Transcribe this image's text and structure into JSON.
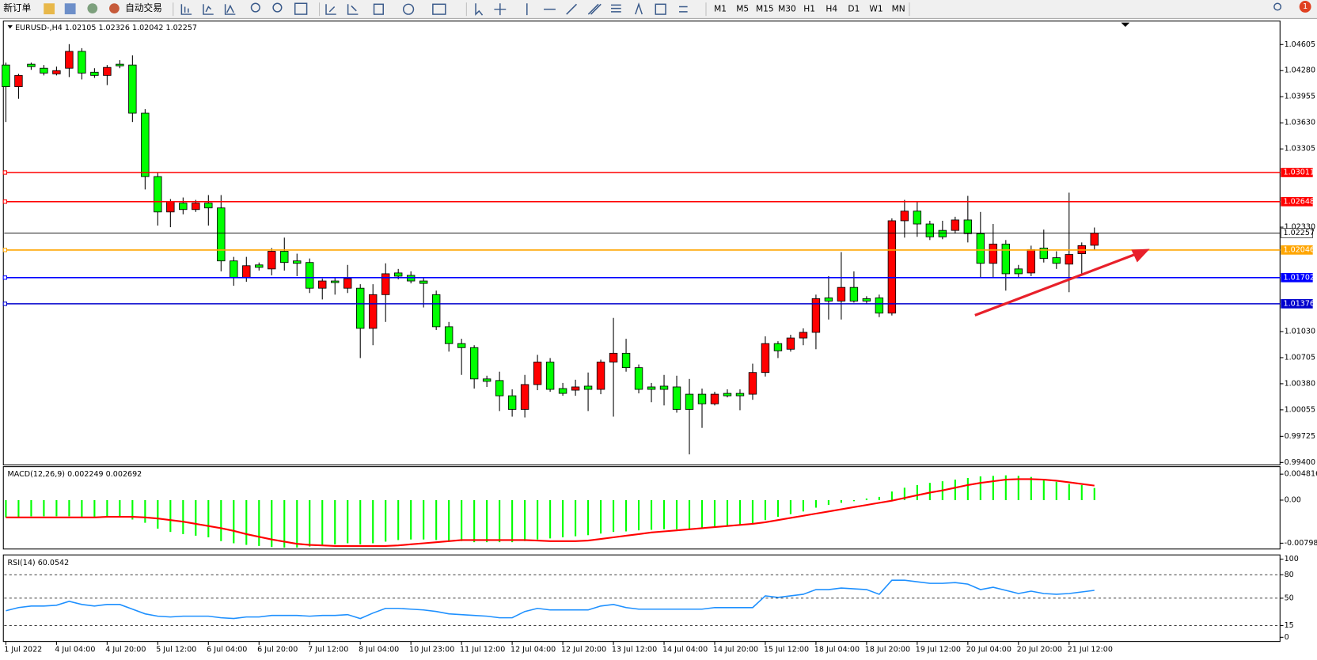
{
  "toolbar": {
    "new_order": "新订单",
    "auto_trade": "自动交易",
    "timeframes": [
      "M1",
      "M5",
      "M15",
      "M30",
      "H1",
      "H4",
      "D1",
      "W1",
      "MN"
    ],
    "badge": "1"
  },
  "chart_data": [
    {
      "type": "candlestick",
      "symbol": "EURUSD-,H4",
      "up_color": "#ff0000",
      "down_color": "#00ff00",
      "categories": [
        "1 Jul 2022",
        null,
        null,
        null,
        "4 Jul 04:00",
        null,
        null,
        null,
        "4 Jul 20:00",
        null,
        null,
        null,
        "5 Jul 12:00",
        null,
        null,
        null,
        "6 Jul 04:00",
        null,
        null,
        null,
        "6 Jul 20:00",
        null,
        null,
        null,
        "7 Jul 12:00",
        null,
        null,
        null,
        "8 Jul 04:00",
        null,
        null,
        null,
        "10 Jul 23:00",
        null,
        null,
        null,
        "11 Jul 12:00",
        null,
        null,
        null,
        "12 Jul 04:00",
        null,
        null,
        null,
        "12 Jul 20:00",
        null,
        null,
        null,
        "13 Jul 12:00",
        null,
        null,
        null,
        "14 Jul 04:00",
        null,
        null,
        null,
        "14 Jul 20:00",
        null,
        null,
        null,
        "15 Jul 12:00",
        null,
        null,
        null,
        "18 Jul 04:00",
        null,
        null,
        null,
        "18 Jul 20:00",
        null,
        null,
        null,
        "19 Jul 12:00",
        null,
        null,
        null,
        "20 Jul 04:00",
        null,
        null,
        null,
        "20 Jul 20:00",
        null,
        null,
        null,
        "21 Jul 12:00",
        null,
        null
      ],
      "open": [
        1.0435,
        1.0408,
        1.0436,
        1.0431,
        1.0424,
        1.0431,
        1.0452,
        1.0426,
        1.0422,
        1.0436,
        1.0435,
        1.0375,
        1.0296,
        1.0252,
        1.0263,
        1.0255,
        1.0263,
        1.0257,
        1.0191,
        1.017,
        1.0186,
        1.0181,
        1.0203,
        1.0191,
        1.0189,
        1.0157,
        1.0166,
        1.0157,
        1.0157,
        1.0107,
        1.0149,
        1.0176,
        1.0173,
        1.0166,
        1.0149,
        1.0109,
        1.0088,
        1.0083,
        1.0044,
        1.0042,
        1.0023,
        1.0006,
        1.0037,
        1.0065,
        1.0032,
        1.003,
        1.0035,
        1.0031,
        1.0065,
        1.0076,
        1.0058,
        1.0034,
        1.0035,
        1.0034,
        1.0025,
        1.0025,
        1.0013,
        1.0026,
        1.0026,
        1.0025,
        1.0052,
        1.0088,
        1.0081,
        1.0095,
        1.0102,
        1.0145,
        1.0141,
        1.0158,
        1.0144,
        1.0145,
        1.0126,
        1.0241,
        1.0253,
        1.0237,
        1.0229,
        1.0229,
        1.0242,
        1.0225,
        1.0188,
        1.0212,
        1.0181,
        1.0176,
        1.0207,
        1.0195,
        1.0187,
        1.02,
        1.02105
      ],
      "high": [
        1.0438,
        1.0424,
        1.0438,
        1.0435,
        1.0433,
        1.0461,
        1.0456,
        1.0431,
        1.0435,
        1.0441,
        1.0447,
        1.038,
        1.0301,
        1.0268,
        1.027,
        1.0267,
        1.0273,
        1.0273,
        1.0196,
        1.0196,
        1.0189,
        1.0207,
        1.022,
        1.02,
        1.0194,
        1.0169,
        1.017,
        1.0186,
        1.0162,
        1.0162,
        1.0188,
        1.0181,
        1.0178,
        1.017,
        1.0154,
        1.0115,
        1.0094,
        1.0086,
        1.0048,
        1.0053,
        1.0031,
        1.0049,
        1.0074,
        1.007,
        1.0039,
        1.0043,
        1.0052,
        1.0068,
        1.012,
        1.0094,
        1.0062,
        1.0039,
        1.0049,
        1.0048,
        1.0044,
        1.0032,
        1.0028,
        1.0031,
        1.0031,
        1.0063,
        1.0097,
        1.0091,
        1.0099,
        1.0107,
        1.0149,
        1.0172,
        1.0202,
        1.0178,
        1.0147,
        1.0149,
        1.0244,
        1.0267,
        1.0265,
        1.0241,
        1.0241,
        1.0246,
        1.0272,
        1.0252,
        1.0237,
        1.0217,
        1.0186,
        1.021,
        1.023,
        1.0203,
        1.0276,
        1.0214,
        1.02326
      ],
      "low": [
        1.0364,
        1.0393,
        1.0429,
        1.0422,
        1.0422,
        1.042,
        1.0417,
        1.0419,
        1.041,
        1.0431,
        1.0364,
        1.028,
        1.0235,
        1.0233,
        1.0249,
        1.0252,
        1.0235,
        1.0178,
        1.016,
        1.0165,
        1.0179,
        1.0173,
        1.0179,
        1.0172,
        1.0151,
        1.0143,
        1.0149,
        1.0151,
        1.007,
        1.0086,
        1.0115,
        1.0168,
        1.0163,
        1.0133,
        1.0105,
        1.0078,
        1.0049,
        1.0032,
        1.0034,
        1.0004,
        0.9997,
        0.9996,
        1.003,
        1.0028,
        1.0023,
        1.0023,
        1.0004,
        1.0025,
        0.9997,
        1.0053,
        1.0026,
        1.0015,
        1.0011,
        1.0002,
        0.995,
        0.9983,
        1.0011,
        1.0021,
        1.0005,
        1.0018,
        1.0047,
        1.007,
        1.0078,
        1.0086,
        1.0081,
        1.0118,
        1.0118,
        1.0139,
        1.0137,
        1.0121,
        1.0123,
        1.022,
        1.0221,
        1.0217,
        1.0218,
        1.0225,
        1.0214,
        1.017,
        1.017,
        1.0154,
        1.017,
        1.0172,
        1.0189,
        1.0181,
        1.0152,
        1.0174,
        1.02042
      ],
      "close": [
        1.0408,
        1.0422,
        1.0433,
        1.0425,
        1.0428,
        1.0452,
        1.0425,
        1.0422,
        1.0432,
        1.0434,
        1.0375,
        1.0296,
        1.0252,
        1.0265,
        1.0255,
        1.0263,
        1.0257,
        1.0191,
        1.017,
        1.0185,
        1.0183,
        1.0203,
        1.0189,
        1.0188,
        1.0157,
        1.0166,
        1.0164,
        1.0169,
        1.0107,
        1.0149,
        1.0175,
        1.0172,
        1.0166,
        1.0163,
        1.0109,
        1.0088,
        1.0083,
        1.0044,
        1.0041,
        1.0023,
        1.0006,
        1.0037,
        1.0065,
        1.0031,
        1.0026,
        1.0034,
        1.0031,
        1.0065,
        1.0076,
        1.0058,
        1.0031,
        1.0031,
        1.0031,
        1.0006,
        1.0006,
        1.0013,
        1.0025,
        1.0023,
        1.0023,
        1.0052,
        1.0088,
        1.0079,
        1.0095,
        1.0102,
        1.0144,
        1.0141,
        1.0158,
        1.0141,
        1.0141,
        1.0126,
        1.0241,
        1.0253,
        1.0237,
        1.0221,
        1.0221,
        1.0242,
        1.0225,
        1.0188,
        1.0212,
        1.0175,
        1.0175,
        1.0205,
        1.0194,
        1.0188,
        1.0199,
        1.021,
        1.02257
      ],
      "ylim": [
        0.994,
        1.04877
      ],
      "yticks": [
        {
          "value": 1.04605,
          "label": "1.04605"
        },
        {
          "value": 1.0428,
          "label": "1.04280"
        },
        {
          "value": 1.03955,
          "label": "1.03955"
        },
        {
          "value": 1.0363,
          "label": "1.03630"
        },
        {
          "value": 1.03305,
          "label": "1.03305"
        },
        {
          "value": 1.0233,
          "label": "1.02330"
        },
        {
          "value": 1.0103,
          "label": "1.01030"
        },
        {
          "value": 1.00705,
          "label": "1.00705"
        },
        {
          "value": 1.0038,
          "label": "1.00380"
        },
        {
          "value": 1.00055,
          "label": "1.00055"
        },
        {
          "value": 0.99725,
          "label": "0.99725"
        },
        {
          "value": 0.994,
          "label": "0.99400"
        }
      ],
      "levels": [
        {
          "value": 1.03011,
          "color": "#ff0000"
        },
        {
          "value": 1.02648,
          "color": "#ff0000"
        },
        {
          "value": 1.02046,
          "color": "#ffa500"
        },
        {
          "value": 1.01702,
          "color": "#0000ff"
        },
        {
          "value": 1.01376,
          "color": "#0000cd"
        }
      ]
    },
    {
      "type": "macd",
      "title": "MACD(12,26,9)",
      "histogram_color": "#00ff00",
      "signal_color": "#ff0000",
      "histogram": [
        -0.0032,
        -0.0031,
        -0.003,
        -0.003,
        -0.003,
        -0.003,
        -0.0031,
        -0.0031,
        -0.0031,
        -0.0032,
        -0.0036,
        -0.0042,
        -0.0053,
        -0.0059,
        -0.0063,
        -0.0066,
        -0.0069,
        -0.0076,
        -0.008,
        -0.0083,
        -0.0085,
        -0.0087,
        -0.0088,
        -0.0088,
        -0.0086,
        -0.0084,
        -0.0082,
        -0.008,
        -0.0082,
        -0.008,
        -0.0077,
        -0.0074,
        -0.0073,
        -0.0073,
        -0.0074,
        -0.0076,
        -0.0076,
        -0.0078,
        -0.0078,
        -0.0078,
        -0.0078,
        -0.0076,
        -0.0073,
        -0.0071,
        -0.0069,
        -0.0067,
        -0.0065,
        -0.0062,
        -0.0059,
        -0.0058,
        -0.0056,
        -0.0055,
        -0.0054,
        -0.0054,
        -0.0054,
        -0.0053,
        -0.0051,
        -0.0049,
        -0.0047,
        -0.0043,
        -0.0037,
        -0.0031,
        -0.0026,
        -0.0021,
        -0.0014,
        -0.0009,
        -0.0005,
        -0.0002,
        0.0003,
        0.0006,
        0.0016,
        0.0023,
        0.0028,
        0.0032,
        0.0035,
        0.0038,
        0.0041,
        0.0044,
        0.0045,
        0.0046,
        0.0045,
        0.0043,
        0.0038,
        0.0034,
        0.003,
        0.0028,
        0.002249
      ],
      "signal": [
        -0.0032,
        -0.0032,
        -0.0032,
        -0.0032,
        -0.0032,
        -0.0032,
        -0.0032,
        -0.0032,
        -0.0031,
        -0.0031,
        -0.0031,
        -0.0032,
        -0.0034,
        -0.0037,
        -0.004,
        -0.0044,
        -0.0048,
        -0.0052,
        -0.0057,
        -0.0063,
        -0.0068,
        -0.0073,
        -0.0077,
        -0.0081,
        -0.0083,
        -0.0084,
        -0.0085,
        -0.0085,
        -0.0085,
        -0.0085,
        -0.0085,
        -0.0084,
        -0.0082,
        -0.008,
        -0.0078,
        -0.0076,
        -0.0074,
        -0.0074,
        -0.0074,
        -0.0074,
        -0.0074,
        -0.0074,
        -0.0075,
        -0.0076,
        -0.0076,
        -0.0076,
        -0.0075,
        -0.0072,
        -0.0069,
        -0.0066,
        -0.0063,
        -0.006,
        -0.0058,
        -0.0056,
        -0.0054,
        -0.0052,
        -0.005,
        -0.0048,
        -0.0046,
        -0.0044,
        -0.0041,
        -0.0037,
        -0.0033,
        -0.0029,
        -0.0025,
        -0.0021,
        -0.0017,
        -0.0013,
        -0.0009,
        -0.0005,
        -0.0001,
        0.0004,
        0.0009,
        0.0014,
        0.0018,
        0.0023,
        0.0028,
        0.0032,
        0.0035,
        0.0038,
        0.0039,
        0.0039,
        0.0038,
        0.0036,
        0.0033,
        0.003,
        0.002692
      ],
      "ylim": [
        -0.00891,
        0.0059
      ],
      "yticks": [
        -0.007984,
        {
          "value": 0,
          "label": "0.00"
        },
        0.004816
      ]
    },
    {
      "type": "rsi",
      "title": "RSI(14)",
      "color": "#1e90ff",
      "values": [
        34,
        38,
        40,
        40,
        41,
        46,
        42,
        40,
        42,
        42,
        36,
        30,
        27,
        26,
        27,
        27,
        27,
        25,
        24,
        26,
        26,
        28,
        28,
        28,
        27,
        28,
        28,
        29,
        24,
        31,
        37,
        37,
        36,
        35,
        33,
        30,
        29,
        28,
        27,
        25,
        25,
        33,
        37,
        35,
        35,
        35,
        35,
        40,
        42,
        38,
        36,
        36,
        36,
        36,
        36,
        36,
        38,
        38,
        38,
        38,
        53,
        51,
        53,
        55,
        61,
        61,
        63,
        62,
        61,
        55,
        73,
        73,
        71,
        69,
        69,
        70,
        68,
        61,
        64,
        60,
        56,
        59,
        56,
        55,
        56,
        58,
        60.0542
      ],
      "ylim": [
        0,
        100
      ],
      "yticks": [
        0,
        15,
        50,
        80,
        100
      ],
      "levels": [
        15,
        50,
        80
      ]
    }
  ]
}
